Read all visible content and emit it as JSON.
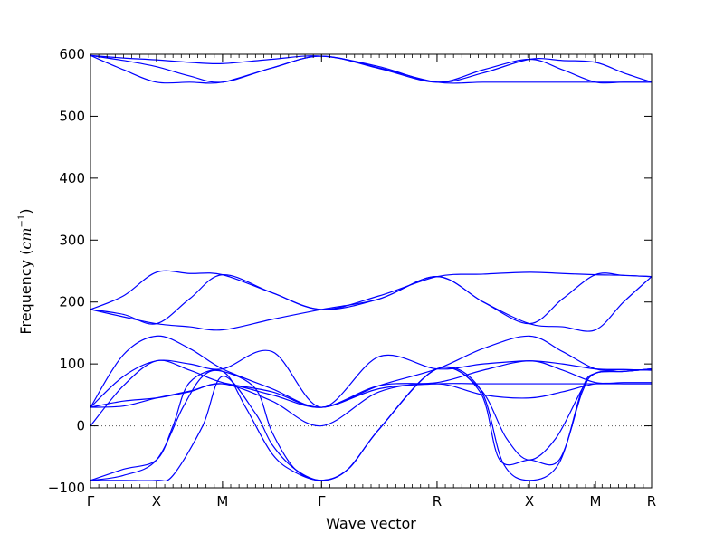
{
  "chart_data": {
    "type": "line",
    "xlabel": "Wave vector",
    "ylabel_main": "Frequency (",
    "ylabel_math": "cm",
    "ylabel_exp": "−1",
    "ylabel_close": ")",
    "ylim": [
      -100,
      600
    ],
    "yticks": [
      -100,
      0,
      100,
      200,
      300,
      400,
      500,
      600
    ],
    "ytick_labels": [
      "−100",
      "0",
      "100",
      "200",
      "300",
      "400",
      "500",
      "600"
    ],
    "xlim": [
      0,
      8.5
    ],
    "xtick_positions": [
      0,
      1,
      2,
      3.5,
      5.25,
      6.65,
      7.65,
      8.5
    ],
    "xtick_labels": [
      "Γ",
      "X",
      "M",
      "Γ",
      "R",
      "X",
      "M",
      "R"
    ],
    "zero_line": true,
    "band_color": "#0000ff",
    "series": [
      {
        "x": [
          0,
          0.5,
          1,
          1.5,
          2,
          2.75,
          3.5,
          4.375,
          5.25,
          5.95,
          6.65,
          7.15,
          7.65,
          8.075,
          8.5
        ],
        "values": [
          598,
          594,
          591,
          587,
          585,
          592,
          597,
          580,
          555,
          570,
          592,
          590,
          587,
          570,
          555
        ]
      },
      {
        "x": [
          0,
          0.5,
          1,
          1.5,
          2,
          2.75,
          3.5,
          4.375,
          5.25,
          5.95,
          6.65,
          7.15,
          7.65,
          8.075,
          8.5
        ],
        "values": [
          598,
          590,
          580,
          565,
          555,
          578,
          597,
          577,
          555,
          575,
          592,
          575,
          555,
          555,
          555
        ]
      },
      {
        "x": [
          0,
          0.5,
          1,
          1.5,
          2,
          2.75,
          3.5,
          4.375,
          5.25,
          5.95,
          6.65,
          7.15,
          7.65,
          8.075,
          8.5
        ],
        "values": [
          598,
          575,
          555,
          555,
          555,
          578,
          597,
          578,
          555,
          555,
          555,
          555,
          555,
          555,
          555
        ]
      },
      {
        "x": [
          0,
          0.5,
          1,
          1.5,
          2,
          2.75,
          3.5,
          4.375,
          5.25,
          5.95,
          6.65,
          7.15,
          7.65,
          8.075,
          8.5
        ],
        "values": [
          188,
          210,
          248,
          246,
          244,
          215,
          188,
          210,
          241,
          245,
          248,
          246,
          244,
          243,
          241
        ]
      },
      {
        "x": [
          0,
          0.5,
          1,
          1.5,
          2,
          2.75,
          3.5,
          4.375,
          5.25,
          5.95,
          6.65,
          7.15,
          7.65,
          8.075,
          8.5
        ],
        "values": [
          188,
          180,
          165,
          205,
          244,
          215,
          188,
          205,
          241,
          200,
          165,
          205,
          244,
          243,
          241
        ]
      },
      {
        "x": [
          0,
          0.5,
          1,
          1.5,
          2,
          2.75,
          3.5,
          4.375,
          5.25,
          5.95,
          6.65,
          7.15,
          7.65,
          8.075,
          8.5
        ],
        "values": [
          188,
          176,
          165,
          160,
          155,
          172,
          188,
          205,
          241,
          200,
          165,
          160,
          155,
          200,
          241
        ]
      },
      {
        "x": [
          0,
          0.5,
          1,
          1.5,
          2,
          2.75,
          3.5,
          4.375,
          5.25,
          5.95,
          6.65,
          7.15,
          7.65,
          8.075,
          8.5
        ],
        "values": [
          30,
          115,
          145,
          125,
          92,
          60,
          30,
          65,
          92,
          125,
          145,
          120,
          92,
          91,
          90
        ]
      },
      {
        "x": [
          0,
          0.5,
          1,
          1.5,
          2,
          2.75,
          3.5,
          4.375,
          5.25,
          5.95,
          6.65,
          7.15,
          7.65,
          8.075,
          8.5
        ],
        "values": [
          30,
          80,
          105,
          100,
          92,
          120,
          30,
          112,
          92,
          100,
          105,
          100,
          92,
          91,
          90
        ]
      },
      {
        "x": [
          0,
          0.5,
          1,
          1.5,
          2,
          2.75,
          3.5,
          4.375,
          5.25,
          5.95,
          6.65,
          7.15,
          7.65,
          8.075,
          8.5
        ],
        "values": [
          0,
          65,
          105,
          90,
          70,
          55,
          30,
          65,
          70,
          90,
          105,
          90,
          70,
          70,
          70
        ]
      },
      {
        "x": [
          0,
          0.5,
          1,
          1.5,
          2,
          2.75,
          3.5,
          4.375,
          5.25,
          5.95,
          6.65,
          7.15,
          7.65,
          8.075,
          8.5
        ],
        "values": [
          30,
          40,
          45,
          55,
          68,
          40,
          0,
          55,
          68,
          50,
          45,
          55,
          68,
          68,
          68
        ]
      },
      {
        "x": [
          0,
          0.5,
          1,
          1.5,
          2,
          2.75,
          3.5,
          4.375,
          5.25,
          5.95,
          6.65,
          7.15,
          7.65,
          8.075,
          8.5
        ],
        "values": [
          30,
          32,
          45,
          56,
          68,
          50,
          30,
          60,
          68,
          68,
          68,
          68,
          68,
          68,
          68
        ]
      },
      {
        "x": [
          0,
          0.5,
          1,
          1.25,
          1.5,
          2,
          2.35,
          2.75,
          3.1,
          3.5,
          3.9,
          4.375,
          5.25,
          5.9,
          6.3,
          6.65,
          7.05,
          7.45,
          7.65,
          8.075,
          8.5
        ],
        "values": [
          -88,
          -70,
          -55,
          0,
          70,
          88,
          30,
          -45,
          -75,
          -88,
          -70,
          -5,
          92,
          60,
          -20,
          -55,
          -20,
          60,
          85,
          88,
          92
        ]
      },
      {
        "x": [
          0,
          0.5,
          1,
          1.4,
          1.7,
          2,
          2.5,
          2.75,
          3.1,
          3.5,
          3.9,
          4.375,
          5.25,
          5.9,
          6.2,
          6.65,
          7.1,
          7.45,
          7.65,
          8.075,
          8.5
        ],
        "values": [
          -88,
          -80,
          -55,
          30,
          80,
          88,
          60,
          -10,
          -70,
          -88,
          -70,
          -5,
          92,
          55,
          -55,
          -55,
          -55,
          55,
          85,
          88,
          92
        ]
      },
      {
        "x": [
          0,
          0.5,
          1,
          1.25,
          1.7,
          2,
          2.5,
          2.75,
          3.1,
          3.5,
          3.9,
          4.375,
          5.25,
          5.9,
          6.25,
          6.65,
          7.1,
          7.45,
          7.65,
          8.075,
          8.5
        ],
        "values": [
          -88,
          -88,
          -88,
          -80,
          0,
          80,
          20,
          -30,
          -70,
          -88,
          -70,
          -5,
          92,
          60,
          -60,
          -88,
          -60,
          60,
          85,
          88,
          92
        ]
      }
    ]
  }
}
